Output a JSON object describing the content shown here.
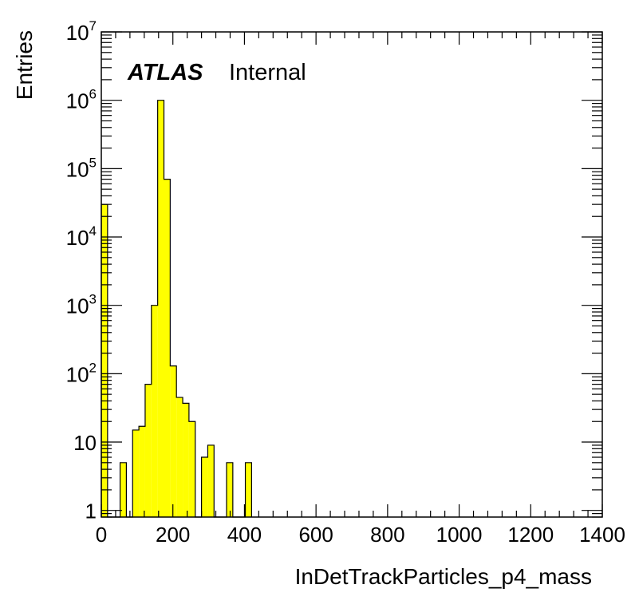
{
  "chart_data": {
    "type": "bar",
    "title": "",
    "xlabel": "InDetTrackParticles_p4_mass",
    "ylabel": "Entries",
    "xlim": [
      0,
      1400
    ],
    "ylim": [
      0.8,
      10000000
    ],
    "yscale": "log",
    "grid": false,
    "bar_color": "#ffff00",
    "bar_edge_color": "#000000",
    "bin_width": 17.5,
    "bins": [
      {
        "x": 0,
        "value": 30000
      },
      {
        "x": 17.5,
        "value": 0
      },
      {
        "x": 35,
        "value": 0
      },
      {
        "x": 52.5,
        "value": 5
      },
      {
        "x": 70,
        "value": 0
      },
      {
        "x": 87.5,
        "value": 15
      },
      {
        "x": 105,
        "value": 17
      },
      {
        "x": 122.5,
        "value": 70
      },
      {
        "x": 140,
        "value": 1000
      },
      {
        "x": 157.5,
        "value": 1000000
      },
      {
        "x": 175,
        "value": 70000
      },
      {
        "x": 192.5,
        "value": 130
      },
      {
        "x": 210,
        "value": 45
      },
      {
        "x": 227.5,
        "value": 37
      },
      {
        "x": 245,
        "value": 20
      },
      {
        "x": 262.5,
        "value": 0
      },
      {
        "x": 280,
        "value": 6
      },
      {
        "x": 297.5,
        "value": 9
      },
      {
        "x": 315,
        "value": 0
      },
      {
        "x": 332.5,
        "value": 0
      },
      {
        "x": 350,
        "value": 5
      },
      {
        "x": 367.5,
        "value": 0
      },
      {
        "x": 385,
        "value": 0
      },
      {
        "x": 402.5,
        "value": 5
      }
    ],
    "x_ticks": [
      "0",
      "200",
      "400",
      "600",
      "800",
      "1000",
      "1200",
      "1400"
    ],
    "y_ticks": [
      {
        "value": 1,
        "base": "1",
        "exp": ""
      },
      {
        "value": 10,
        "base": "10",
        "exp": ""
      },
      {
        "value": 100,
        "base": "10",
        "exp": "2"
      },
      {
        "value": 1000,
        "base": "10",
        "exp": "3"
      },
      {
        "value": 10000,
        "base": "10",
        "exp": "4"
      },
      {
        "value": 100000,
        "base": "10",
        "exp": "5"
      },
      {
        "value": 1000000,
        "base": "10",
        "exp": "6"
      },
      {
        "value": 10000000,
        "base": "10",
        "exp": "7"
      }
    ]
  },
  "label": {
    "experiment": "ATLAS",
    "status": "Internal"
  }
}
